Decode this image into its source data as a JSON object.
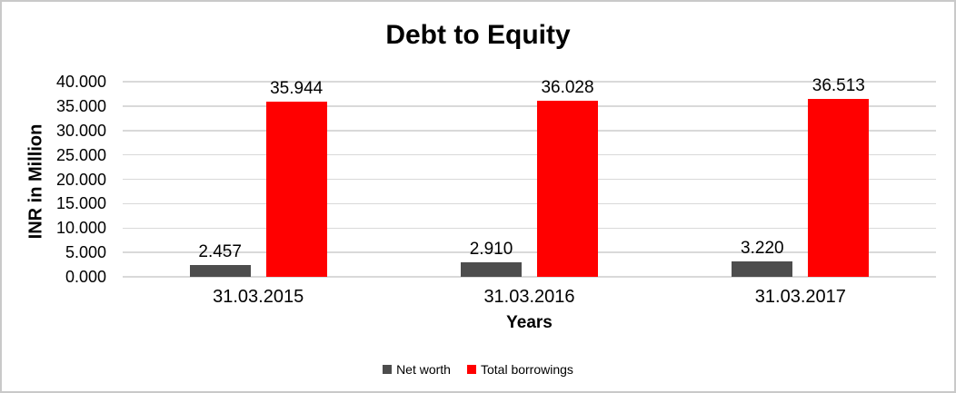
{
  "chart_data": {
    "type": "bar",
    "title": "Debt to Equity",
    "categories": [
      "31.03.2015",
      "31.03.2016",
      "31.03.2017"
    ],
    "series": [
      {
        "name": "Net worth",
        "color": "#4D4D4D",
        "values": [
          2457,
          2910,
          3220
        ],
        "value_labels": [
          "2.457",
          "2.910",
          "3.220"
        ]
      },
      {
        "name": "Total borrowings",
        "color": "#FF0000",
        "values": [
          35944,
          36028,
          36513
        ],
        "value_labels": [
          "35.944",
          "36.028",
          "36.513"
        ]
      }
    ],
    "xlabel": "Years",
    "ylabel": "INR in Million",
    "ylim": [
      0,
      40000
    ],
    "ytick_step": 5000,
    "ytick_labels": [
      "0.000",
      "5.000",
      "10.000",
      "15.000",
      "20.000",
      "25.000",
      "30.000",
      "35.000",
      "40.000"
    ],
    "grid": true,
    "gridline_color": "#D9D9D9",
    "legend_position": "bottom",
    "text_color": "#000000",
    "frame_border_color": "#C9C9C9",
    "background_color": "#FFFFFF"
  }
}
